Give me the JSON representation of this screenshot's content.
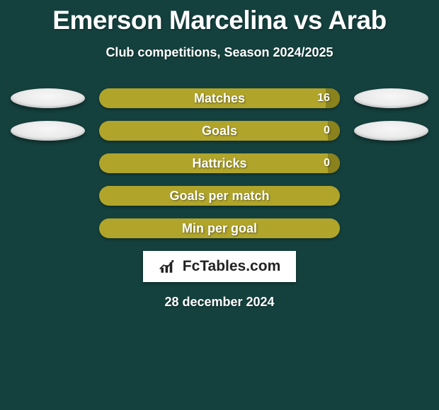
{
  "colors": {
    "page_bg": "#14403d",
    "bar_bg": "#b0a52a",
    "bar_fill": "#8a821c",
    "oval_top": "#f7f7f7",
    "oval_bottom": "#d6d6d6",
    "logo_bg": "#ffffff",
    "text": "#ffffff"
  },
  "title": "Emerson Marcelina vs Arab",
  "subtitle": "Club competitions, Season 2024/2025",
  "stats": [
    {
      "label": "Matches",
      "value": "16",
      "show_value": true,
      "show_ovals": true,
      "fill_pct": 6
    },
    {
      "label": "Goals",
      "value": "0",
      "show_value": true,
      "show_ovals": true,
      "fill_pct": 5
    },
    {
      "label": "Hattricks",
      "value": "0",
      "show_value": true,
      "show_ovals": false,
      "fill_pct": 5
    },
    {
      "label": "Goals per match",
      "value": "",
      "show_value": false,
      "show_ovals": false,
      "fill_pct": 0
    },
    {
      "label": "Min per goal",
      "value": "",
      "show_value": false,
      "show_ovals": false,
      "fill_pct": 0
    }
  ],
  "logo_text": "FcTables.com",
  "date": "28 december 2024"
}
